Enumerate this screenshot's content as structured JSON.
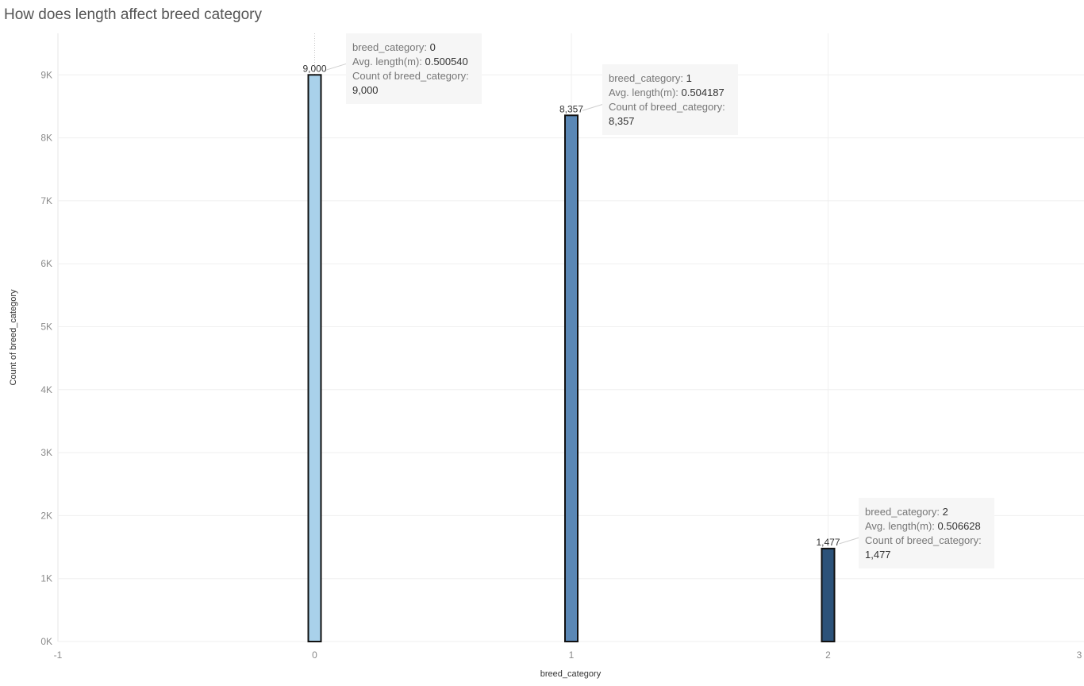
{
  "title": "How does length affect breed category",
  "chart_data": {
    "type": "bar",
    "title": "How does length affect breed category",
    "xlabel": "breed_category",
    "ylabel": "Count of breed_category",
    "xlim": [
      -1,
      3
    ],
    "ylim": [
      0,
      9600
    ],
    "x_ticks": [
      "-1",
      "0",
      "1",
      "2",
      "3"
    ],
    "y_ticks": [
      {
        "value": 0,
        "label": "0K"
      },
      {
        "value": 1000,
        "label": "1K"
      },
      {
        "value": 2000,
        "label": "2K"
      },
      {
        "value": 3000,
        "label": "3K"
      },
      {
        "value": 4000,
        "label": "4K"
      },
      {
        "value": 5000,
        "label": "5K"
      },
      {
        "value": 6000,
        "label": "6K"
      },
      {
        "value": 7000,
        "label": "7K"
      },
      {
        "value": 8000,
        "label": "8K"
      },
      {
        "value": 9000,
        "label": "9K"
      }
    ],
    "grid": true,
    "bars": [
      {
        "x": 0,
        "value": 9000,
        "label": "9,000",
        "avg_length": "0.500540",
        "color": "#a9d1ea"
      },
      {
        "x": 1,
        "value": 8357,
        "label": "8,357",
        "avg_length": "0.504187",
        "color": "#5a87b5"
      },
      {
        "x": 2,
        "value": 1477,
        "label": "1,477",
        "avg_length": "0.506628",
        "color": "#2c5279"
      }
    ]
  },
  "tooltips": [
    {
      "cat_label": "breed_category:",
      "cat_value": "0",
      "avg_label": "Avg. length(m):",
      "avg_value": "0.500540",
      "count_label": "Count of breed_category:",
      "count_value": "9,000"
    },
    {
      "cat_label": "breed_category:",
      "cat_value": "1",
      "avg_label": "Avg. length(m):",
      "avg_value": "0.504187",
      "count_label": "Count of breed_category:",
      "count_value": "8,357"
    },
    {
      "cat_label": "breed_category:",
      "cat_value": "2",
      "avg_label": "Avg. length(m):",
      "avg_value": "0.506628",
      "count_label": "Count of breed_category:",
      "count_value": "1,477"
    }
  ]
}
